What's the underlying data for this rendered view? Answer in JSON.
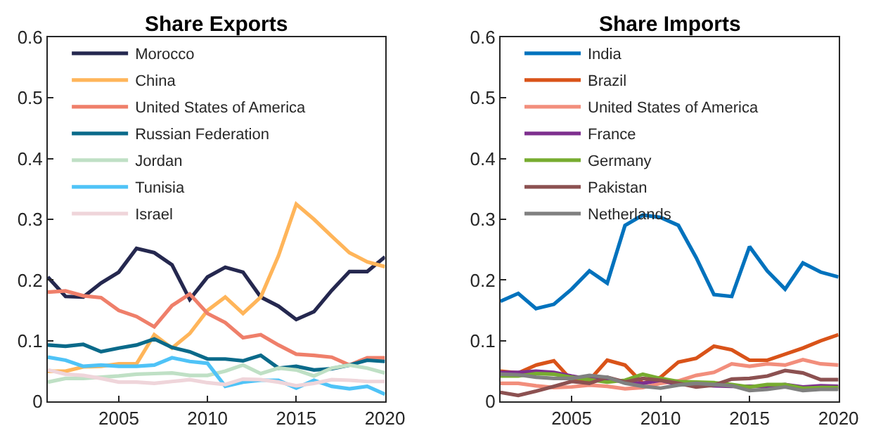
{
  "chart_data": [
    {
      "type": "line",
      "title": "Share Exports",
      "x": [
        2001,
        2002,
        2003,
        2004,
        2005,
        2006,
        2007,
        2008,
        2009,
        2010,
        2011,
        2012,
        2013,
        2014,
        2015,
        2016,
        2017,
        2018,
        2019,
        2020
      ],
      "xlim": [
        2001,
        2020
      ],
      "xticks": [
        2005,
        2010,
        2015,
        2020
      ],
      "ylim": [
        0,
        0.6
      ],
      "yticks": [
        0,
        0.1,
        0.2,
        0.3,
        0.4,
        0.5,
        0.6
      ],
      "legend": "top left",
      "marker": "none",
      "line_style": "solid",
      "series": [
        {
          "name": "Morocco",
          "color": "#25284f",
          "values": [
            0.205,
            0.173,
            0.172,
            0.195,
            0.213,
            0.252,
            0.245,
            0.225,
            0.168,
            0.205,
            0.221,
            0.213,
            0.172,
            0.157,
            0.135,
            0.148,
            0.183,
            0.214,
            0.214,
            0.238
          ]
        },
        {
          "name": "China",
          "color": "#ffb55a",
          "values": [
            0.05,
            0.05,
            0.057,
            0.058,
            0.062,
            0.062,
            0.11,
            0.088,
            0.112,
            0.15,
            0.172,
            0.145,
            0.172,
            0.24,
            0.325,
            0.3,
            0.272,
            0.245,
            0.23,
            0.222
          ]
        },
        {
          "name": "United States of America",
          "color": "#ef7f6a",
          "values": [
            0.18,
            0.182,
            0.174,
            0.171,
            0.15,
            0.14,
            0.123,
            0.158,
            0.177,
            0.145,
            0.13,
            0.105,
            0.11,
            0.093,
            0.078,
            0.076,
            0.073,
            0.06,
            0.072,
            0.072
          ]
        },
        {
          "name": "Russian Federation",
          "color": "#0a6a8a",
          "values": [
            0.093,
            0.091,
            0.094,
            0.082,
            0.088,
            0.093,
            0.103,
            0.089,
            0.082,
            0.07,
            0.07,
            0.067,
            0.076,
            0.055,
            0.058,
            0.052,
            0.054,
            0.06,
            0.068,
            0.066
          ]
        },
        {
          "name": "Jordan",
          "color": "#bfe0c5",
          "values": [
            0.032,
            0.038,
            0.038,
            0.04,
            0.042,
            0.045,
            0.046,
            0.047,
            0.043,
            0.043,
            0.05,
            0.06,
            0.046,
            0.055,
            0.052,
            0.042,
            0.055,
            0.06,
            0.055,
            0.047
          ]
        },
        {
          "name": "Tunisia",
          "color": "#4fc3f7",
          "values": [
            0.073,
            0.068,
            0.058,
            0.06,
            0.058,
            0.058,
            0.06,
            0.072,
            0.066,
            0.063,
            0.025,
            0.032,
            0.035,
            0.035,
            0.022,
            0.035,
            0.025,
            0.021,
            0.025,
            0.012
          ]
        },
        {
          "name": "Israel",
          "color": "#efd5da",
          "values": [
            0.052,
            0.045,
            0.043,
            0.038,
            0.032,
            0.032,
            0.03,
            0.033,
            0.036,
            0.031,
            0.028,
            0.037,
            0.036,
            0.032,
            0.026,
            0.03,
            0.036,
            0.035,
            0.033,
            0.033
          ]
        }
      ]
    },
    {
      "type": "line",
      "title": "Share Imports",
      "x": [
        2001,
        2002,
        2003,
        2004,
        2005,
        2006,
        2007,
        2008,
        2009,
        2010,
        2011,
        2012,
        2013,
        2014,
        2015,
        2016,
        2017,
        2018,
        2019,
        2020
      ],
      "xlim": [
        2001,
        2020
      ],
      "xticks": [
        2005,
        2010,
        2015,
        2020
      ],
      "ylim": [
        0,
        0.6
      ],
      "yticks": [
        0,
        0.1,
        0.2,
        0.3,
        0.4,
        0.5,
        0.6
      ],
      "legend": "top left",
      "marker": "none",
      "line_style": "solid",
      "series": [
        {
          "name": "India",
          "color": "#0072bd",
          "values": [
            0.165,
            0.178,
            0.153,
            0.16,
            0.185,
            0.215,
            0.195,
            0.29,
            0.307,
            0.303,
            0.29,
            0.237,
            0.176,
            0.173,
            0.255,
            0.215,
            0.185,
            0.228,
            0.213,
            0.205
          ]
        },
        {
          "name": "Brazil",
          "color": "#d95319",
          "values": [
            0.05,
            0.047,
            0.06,
            0.067,
            0.035,
            0.035,
            0.068,
            0.06,
            0.03,
            0.04,
            0.065,
            0.071,
            0.091,
            0.085,
            0.068,
            0.068,
            0.078,
            0.088,
            0.1,
            0.11
          ]
        },
        {
          "name": "United States of America",
          "color": "#f28e7c",
          "values": [
            0.03,
            0.03,
            0.026,
            0.023,
            0.024,
            0.027,
            0.025,
            0.021,
            0.023,
            0.03,
            0.034,
            0.043,
            0.048,
            0.062,
            0.058,
            0.062,
            0.06,
            0.069,
            0.062,
            0.06
          ]
        },
        {
          "name": "France",
          "color": "#7e2f8e",
          "values": [
            0.048,
            0.048,
            0.05,
            0.048,
            0.042,
            0.037,
            0.038,
            0.032,
            0.03,
            0.035,
            0.028,
            0.028,
            0.026,
            0.025,
            0.025,
            0.025,
            0.028,
            0.024,
            0.026,
            0.025
          ]
        },
        {
          "name": "Germany",
          "color": "#77ac30",
          "values": [
            0.042,
            0.042,
            0.046,
            0.045,
            0.04,
            0.036,
            0.032,
            0.035,
            0.045,
            0.038,
            0.033,
            0.032,
            0.031,
            0.028,
            0.024,
            0.028,
            0.028,
            0.022,
            0.023,
            0.023
          ]
        },
        {
          "name": "Pakistan",
          "color": "#8c5151",
          "values": [
            0.015,
            0.01,
            0.017,
            0.025,
            0.033,
            0.03,
            0.04,
            0.032,
            0.038,
            0.035,
            0.03,
            0.024,
            0.027,
            0.037,
            0.038,
            0.042,
            0.051,
            0.047,
            0.036,
            0.036
          ]
        },
        {
          "name": "Netherlands",
          "color": "#808080",
          "values": [
            0.045,
            0.044,
            0.04,
            0.038,
            0.038,
            0.043,
            0.04,
            0.03,
            0.025,
            0.022,
            0.027,
            0.03,
            0.028,
            0.026,
            0.018,
            0.02,
            0.024,
            0.018,
            0.02,
            0.02
          ]
        }
      ]
    }
  ]
}
